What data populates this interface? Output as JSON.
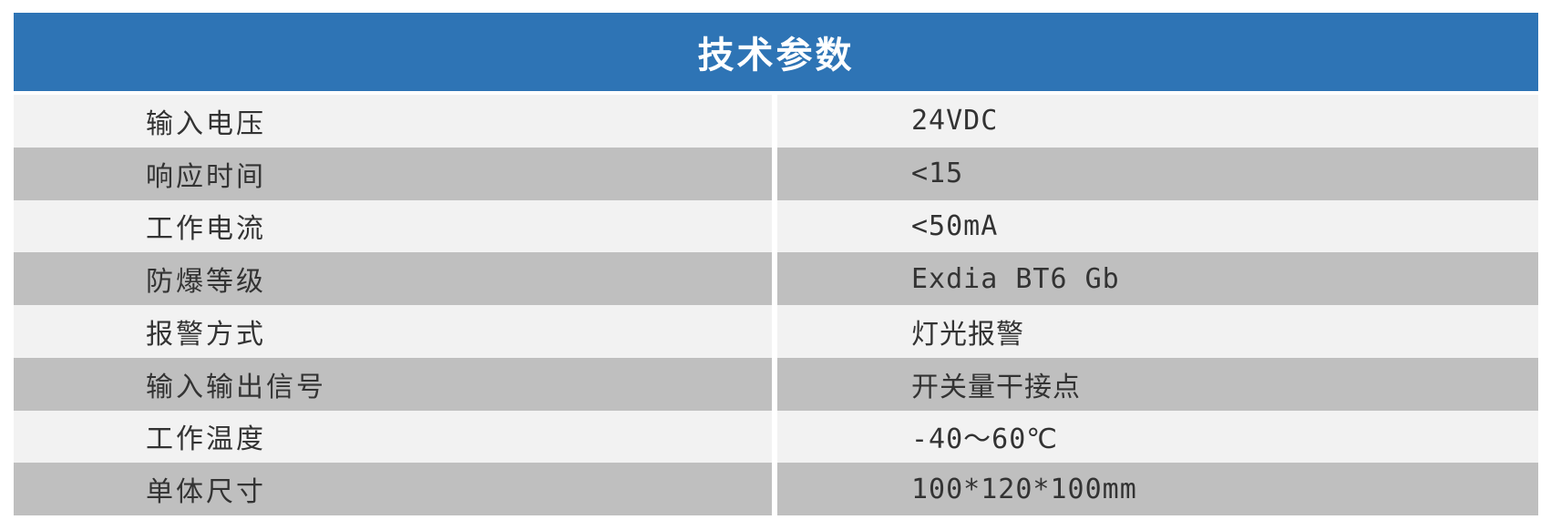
{
  "table": {
    "title": "技术参数",
    "rows": [
      {
        "label": "输入电压",
        "value": "24VDC"
      },
      {
        "label": "响应时间",
        "value": "<15"
      },
      {
        "label": "工作电流",
        "value": "<50mA"
      },
      {
        "label": "防爆等级",
        "value": "Exdia BT6 Gb"
      },
      {
        "label": "报警方式",
        "value": "灯光报警"
      },
      {
        "label": "输入输出信号",
        "value": "开关量干接点"
      },
      {
        "label": "工作温度",
        "value": "-40～60℃"
      },
      {
        "label": "单体尺寸",
        "value": "100*120*100mm"
      }
    ]
  },
  "colors": {
    "header_bg": "#2E74B5",
    "header_text": "#FFFFFF",
    "row_light": "#F2F2F2",
    "row_dark": "#BFBFBF",
    "text": "#333333"
  }
}
